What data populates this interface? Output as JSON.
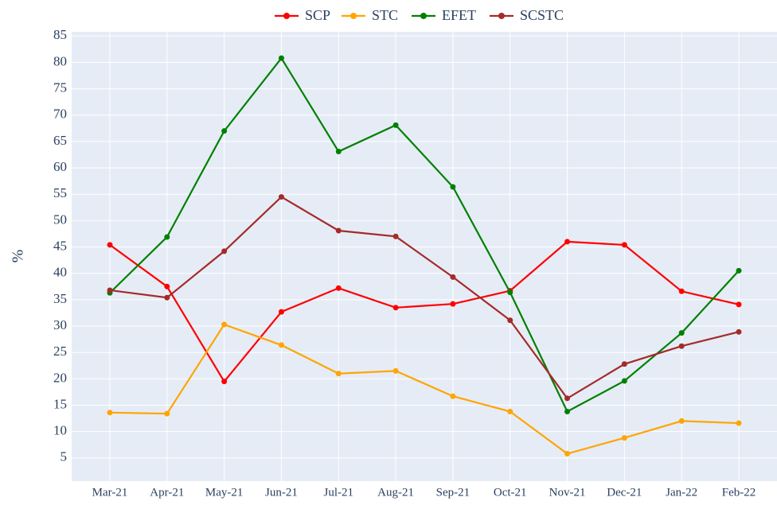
{
  "chart_data": {
    "type": "line",
    "y_label": "%",
    "categories": [
      "Mar-21",
      "Apr-21",
      "May-21",
      "Jun-21",
      "Jul-21",
      "Aug-21",
      "Sep-21",
      "Oct-21",
      "Nov-21",
      "Dec-21",
      "Jan-22",
      "Feb-22"
    ],
    "series": [
      {
        "name": "SCP",
        "color": "#ff0000",
        "values": [
          45.4,
          37.5,
          19.5,
          32.7,
          37.2,
          33.5,
          34.2,
          36.7,
          46.0,
          45.4,
          36.6,
          34.1
        ]
      },
      {
        "name": "STC",
        "color": "#ffa500",
        "values": [
          13.6,
          13.4,
          30.3,
          26.4,
          21.0,
          21.5,
          16.7,
          13.8,
          5.8,
          8.8,
          12.0,
          11.6
        ]
      },
      {
        "name": "EFET",
        "color": "#008000",
        "values": [
          36.3,
          46.9,
          67.0,
          80.8,
          63.1,
          68.1,
          56.4,
          36.4,
          13.8,
          19.6,
          28.7,
          40.5
        ]
      },
      {
        "name": "SCSTC",
        "color": "#a52a2a",
        "values": [
          36.8,
          35.4,
          44.2,
          54.5,
          48.1,
          47.0,
          39.3,
          31.1,
          16.3,
          22.8,
          26.2,
          28.9
        ]
      }
    ],
    "ylim": [
      0.6,
      85.8
    ],
    "yticks": [
      5,
      10,
      15,
      20,
      25,
      30,
      35,
      40,
      45,
      50,
      55,
      60,
      65,
      70,
      75,
      80,
      85
    ],
    "grid": true,
    "legend": "top"
  }
}
